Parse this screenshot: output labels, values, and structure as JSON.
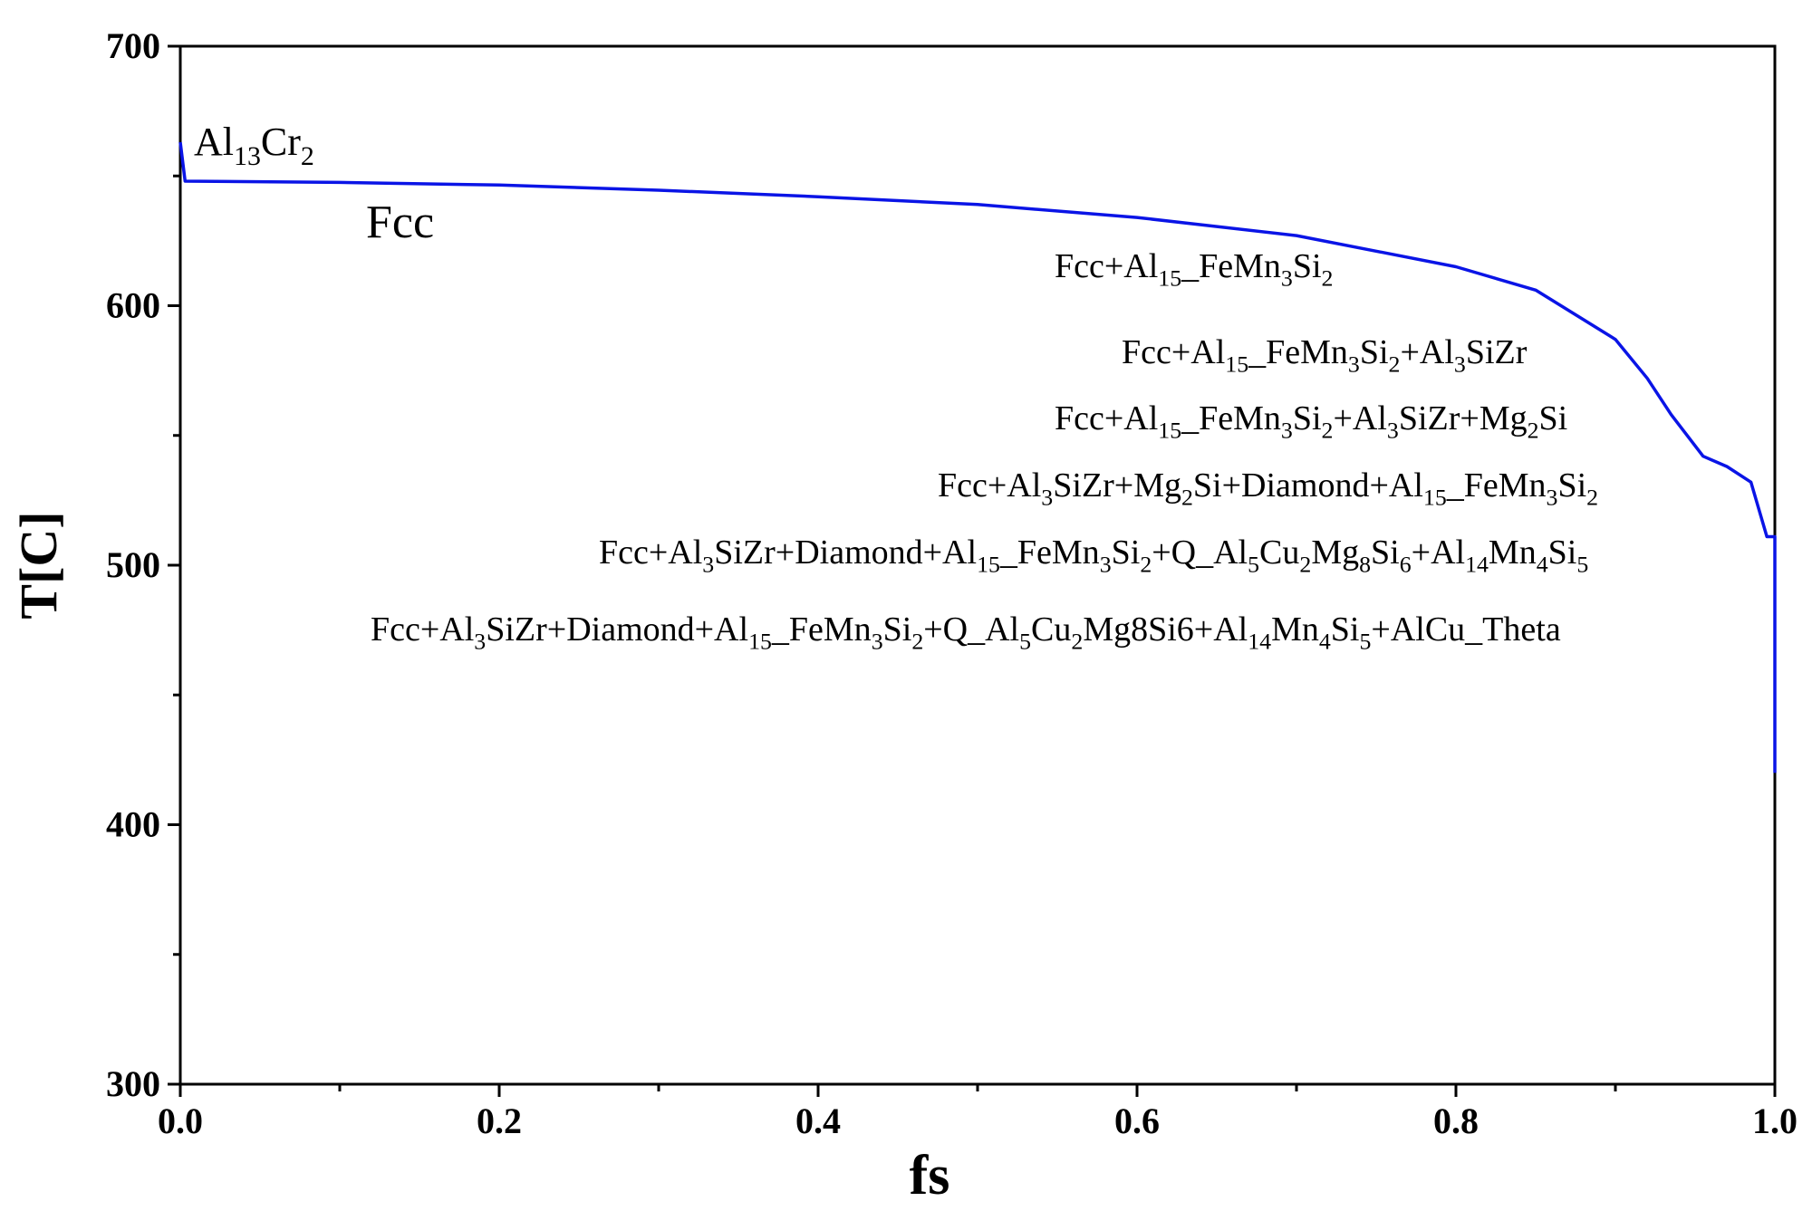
{
  "chart_data": {
    "type": "line",
    "x_label": "fs",
    "y_label": "T[C]",
    "xlim": [
      0,
      1
    ],
    "ylim": [
      300,
      700
    ],
    "xticks": [
      {
        "value": 0,
        "label": "0.0"
      },
      0.2,
      0.4,
      0.6,
      0.8,
      {
        "value": 1,
        "label": "1.0"
      }
    ],
    "yticks": [
      300,
      400,
      500,
      600,
      700
    ],
    "series": [
      {
        "color": "#0a14e6",
        "x": [
          0,
          0.003,
          0.1,
          0.2,
          0.3,
          0.4,
          0.5,
          0.6,
          0.7,
          0.8,
          0.85,
          0.9,
          0.92,
          0.935,
          0.955,
          0.97,
          0.985,
          0.995,
          1.0,
          1.0
        ],
        "values": [
          663,
          648,
          647.5,
          646.5,
          644.5,
          642,
          639,
          634,
          627,
          615,
          606,
          587,
          572,
          558,
          542,
          538,
          532,
          511,
          511,
          420
        ]
      }
    ],
    "annotations": [
      [
        "Al",
        "13",
        "Cr",
        "2"
      ],
      [
        "Fcc"
      ],
      [
        "Fcc+Al",
        "15",
        "_FeMn",
        "3",
        "Si",
        "2"
      ],
      [
        "Fcc+Al",
        "15",
        "_FeMn",
        "3",
        "Si",
        "2",
        "+Al",
        "3",
        "SiZr"
      ],
      [
        "Fcc+Al",
        "15",
        "_FeMn",
        "3",
        "Si",
        "2",
        "+Al",
        "3",
        "SiZr+Mg",
        "2",
        "Si"
      ],
      [
        "Fcc+Al",
        "3",
        "SiZr+Mg",
        "2",
        "Si+Diamond+Al",
        "15",
        "_FeMn",
        "3",
        "Si",
        "2"
      ],
      [
        "Fcc+Al",
        "3",
        "SiZr+Diamond+Al",
        "15",
        "_FeMn",
        "3",
        "Si",
        "2",
        "+Q_Al",
        "5",
        "Cu",
        "2",
        "Mg",
        "8",
        "Si",
        "6",
        "+Al",
        "14",
        "Mn",
        "4",
        "Si",
        "5"
      ],
      [
        "Fcc+Al",
        "3",
        "SiZr+Diamond+Al",
        "15",
        "_FeMn",
        "3",
        "Si",
        "2",
        "+Q_Al",
        "5",
        "Cu",
        "2",
        "Mg8Si6+Al",
        "14",
        "Mn",
        "4",
        "Si",
        "5",
        "+AlCu_Theta"
      ]
    ]
  }
}
